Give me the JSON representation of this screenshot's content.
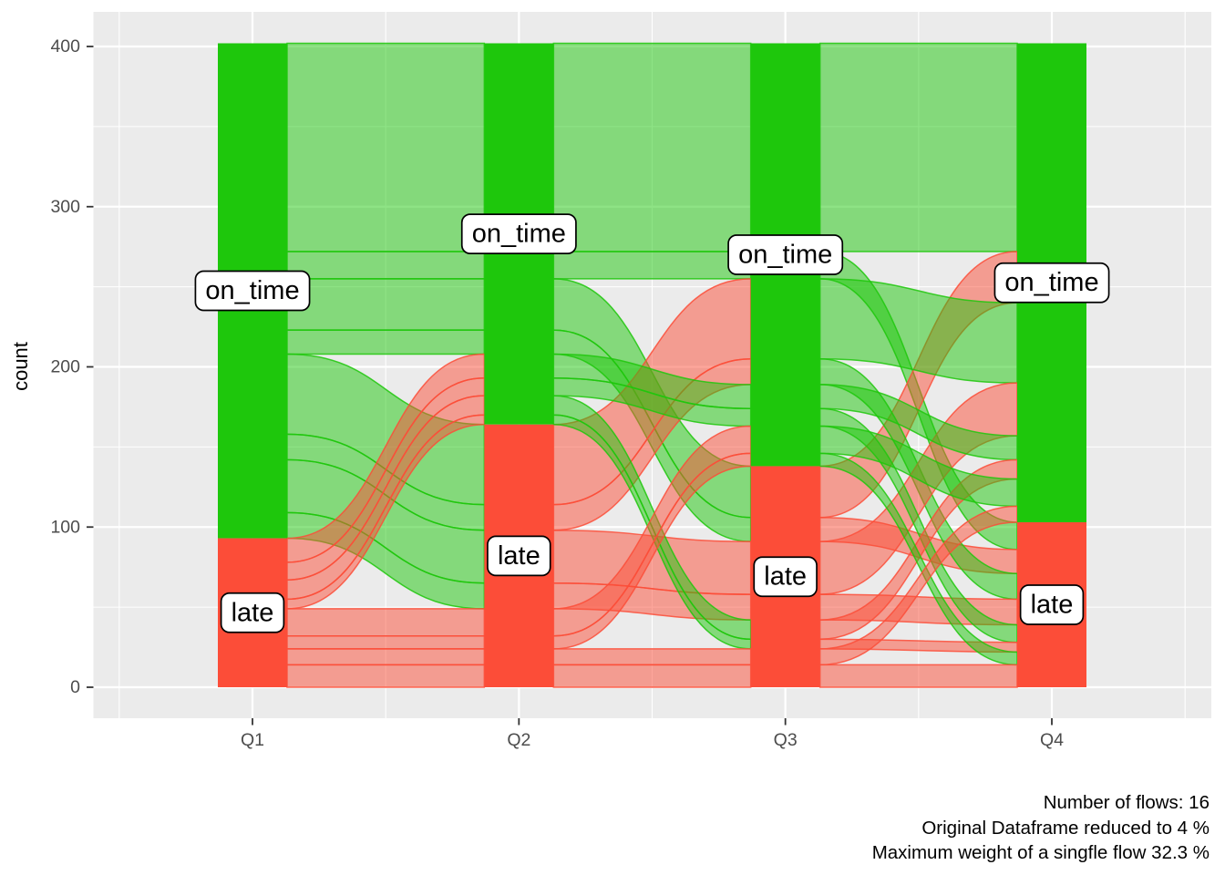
{
  "chart_data": {
    "type": "alluvial",
    "ylabel": "count",
    "x_categories": [
      "Q1",
      "Q2",
      "Q3",
      "Q4"
    ],
    "y_ticks": [
      0,
      100,
      200,
      300,
      400
    ],
    "y_minor": [
      50,
      150,
      250,
      350
    ],
    "total": 402,
    "strata_order": [
      "on_time",
      "late"
    ],
    "strata": {
      "Q1": {
        "on_time": 309,
        "late": 93
      },
      "Q2": {
        "on_time": 238,
        "late": 164
      },
      "Q3": {
        "on_time": 264,
        "late": 138
      },
      "Q4": {
        "on_time": 299,
        "late": 103
      }
    },
    "stratum_labels": {
      "on_time": "on_time",
      "late": "late"
    },
    "flows": [
      {
        "path": [
          "on_time",
          "on_time",
          "on_time",
          "on_time"
        ],
        "weight": 130
      },
      {
        "path": [
          "on_time",
          "on_time",
          "on_time",
          "late"
        ],
        "weight": 17
      },
      {
        "path": [
          "on_time",
          "on_time",
          "late",
          "on_time"
        ],
        "weight": 32
      },
      {
        "path": [
          "on_time",
          "on_time",
          "late",
          "late"
        ],
        "weight": 15
      },
      {
        "path": [
          "on_time",
          "late",
          "on_time",
          "on_time"
        ],
        "weight": 50
      },
      {
        "path": [
          "on_time",
          "late",
          "on_time",
          "late"
        ],
        "weight": 16
      },
      {
        "path": [
          "on_time",
          "late",
          "late",
          "on_time"
        ],
        "weight": 33
      },
      {
        "path": [
          "on_time",
          "late",
          "late",
          "late"
        ],
        "weight": 16
      },
      {
        "path": [
          "late",
          "on_time",
          "on_time",
          "on_time"
        ],
        "weight": 15
      },
      {
        "path": [
          "late",
          "on_time",
          "on_time",
          "late"
        ],
        "weight": 11
      },
      {
        "path": [
          "late",
          "on_time",
          "late",
          "on_time"
        ],
        "weight": 12
      },
      {
        "path": [
          "late",
          "on_time",
          "late",
          "late"
        ],
        "weight": 6
      },
      {
        "path": [
          "late",
          "late",
          "on_time",
          "on_time"
        ],
        "weight": 17
      },
      {
        "path": [
          "late",
          "late",
          "on_time",
          "late"
        ],
        "weight": 8
      },
      {
        "path": [
          "late",
          "late",
          "late",
          "on_time"
        ],
        "weight": 10
      },
      {
        "path": [
          "late",
          "late",
          "late",
          "late"
        ],
        "weight": 14
      }
    ],
    "colors": {
      "on_time": "#1ec70c",
      "late": "#fc4d38",
      "panel": "#ebebeb",
      "grid": "#ffffff",
      "axis_text": "#4d4d4d",
      "tick": "#333333",
      "label_bg": "#ffffff",
      "label_border": "#000000"
    },
    "caption": [
      "Number of flows: 16",
      "Original Dataframe reduced to 4 %",
      "Maximum weight of a singfle flow 32.3 %"
    ]
  }
}
